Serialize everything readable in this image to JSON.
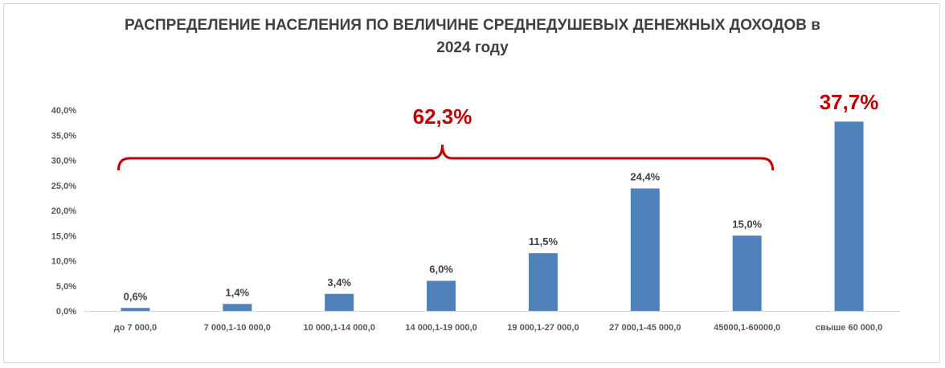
{
  "chart_data": {
    "type": "bar",
    "title_line1": "РАСПРЕДЕЛЕНИЕ НАСЕЛЕНИЯ ПО ВЕЛИЧИНЕ СРЕДНЕДУШЕВЫХ ДЕНЕЖНЫХ ДОХОДОВ в",
    "title_line2": "2024 году",
    "categories": [
      "до 7 000,0",
      "7 000,1-10 000,0",
      "10 000,1-14 000,0",
      "14 000,1-19 000,0",
      "19 000,1-27 000,0",
      "27 000,1-45 000,0",
      "45000,1-60000,0",
      "свыше 60 000,0"
    ],
    "values": [
      0.6,
      1.4,
      3.4,
      6.0,
      11.5,
      24.4,
      15.0,
      37.7
    ],
    "value_labels": [
      "0,6%",
      "1,4%",
      "3,4%",
      "6,0%",
      "11,5%",
      "24,4%",
      "15,0%",
      "37,7%"
    ],
    "ylim": [
      0,
      40
    ],
    "yticks": [
      "0,0%",
      "5,0%",
      "10,0%",
      "15,0%",
      "20,0%",
      "25,0%",
      "30,0%",
      "35,0%",
      "40,0%"
    ],
    "grid": false,
    "bar_color": "#4f81bd",
    "callout_color": "#c00000",
    "callouts": {
      "group": {
        "label": "62,3%",
        "from_category": 0,
        "to_category": 6
      },
      "last": {
        "label": "37,7%",
        "category": 7
      }
    }
  }
}
